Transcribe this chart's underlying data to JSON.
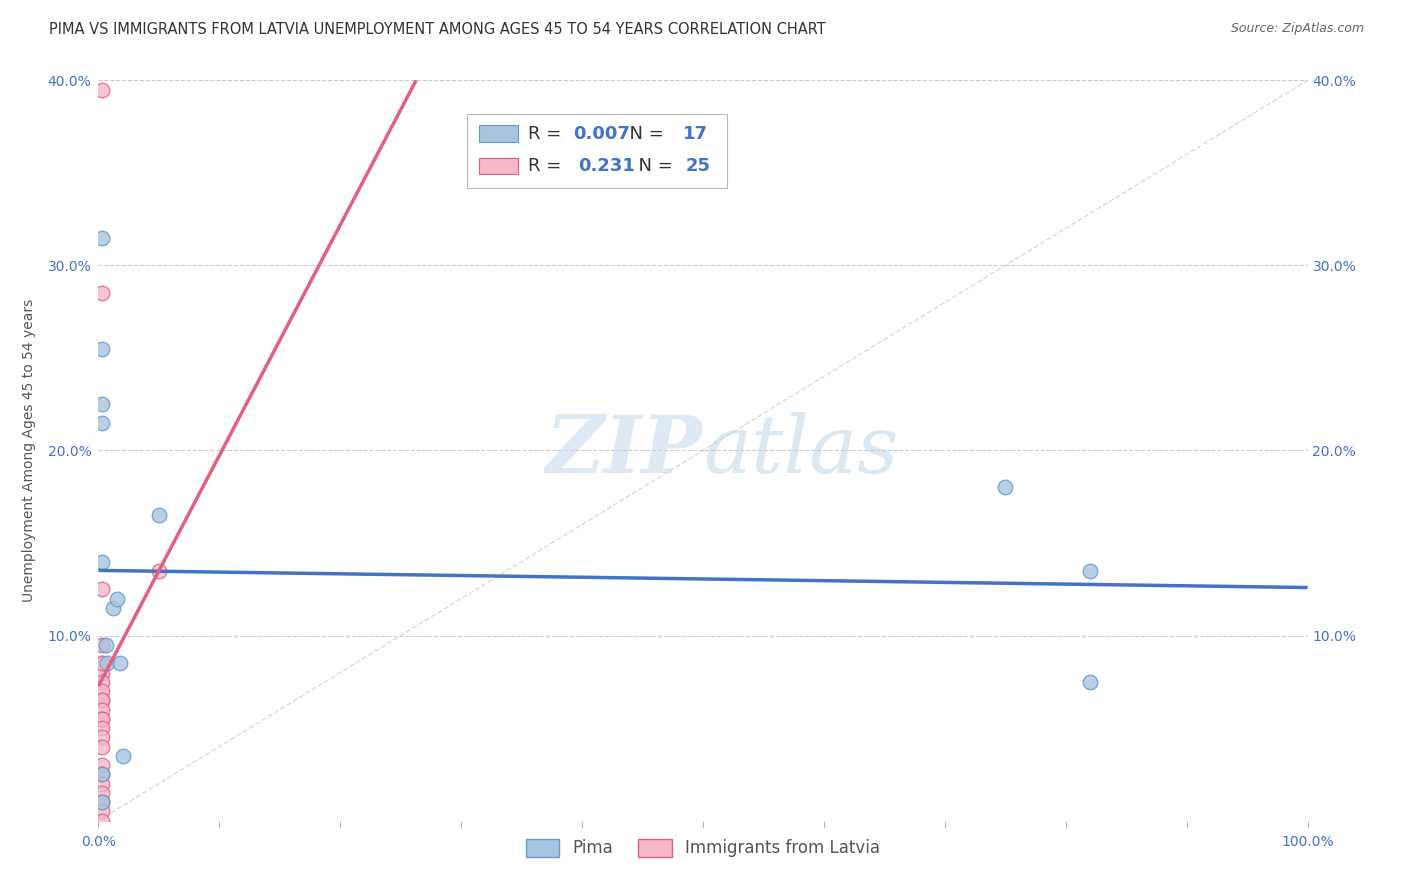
{
  "title": "PIMA VS IMMIGRANTS FROM LATVIA UNEMPLOYMENT AMONG AGES 45 TO 54 YEARS CORRELATION CHART",
  "source": "Source: ZipAtlas.com",
  "ylabel": "Unemployment Among Ages 45 to 54 years",
  "xlim": [
    0,
    1.0
  ],
  "ylim": [
    0,
    0.4
  ],
  "xticks": [
    0.0,
    0.1,
    0.2,
    0.3,
    0.4,
    0.5,
    0.6,
    0.7,
    0.8,
    0.9,
    1.0
  ],
  "xticklabels": [
    "0.0%",
    "",
    "",
    "",
    "",
    "",
    "",
    "",
    "",
    "",
    "100.0%"
  ],
  "yticks": [
    0.0,
    0.1,
    0.2,
    0.3,
    0.4
  ],
  "yticklabels": [
    "",
    "10.0%",
    "20.0%",
    "30.0%",
    "40.0%"
  ],
  "pima_x": [
    0.003,
    0.003,
    0.003,
    0.003,
    0.003,
    0.006,
    0.007,
    0.012,
    0.015,
    0.018,
    0.02,
    0.05,
    0.75,
    0.82,
    0.82,
    0.003,
    0.003
  ],
  "pima_y": [
    0.315,
    0.255,
    0.225,
    0.215,
    0.14,
    0.095,
    0.085,
    0.115,
    0.12,
    0.085,
    0.035,
    0.165,
    0.18,
    0.135,
    0.075,
    0.025,
    0.01
  ],
  "latvia_x": [
    0.003,
    0.003,
    0.003,
    0.003,
    0.003,
    0.003,
    0.003,
    0.003,
    0.003,
    0.003,
    0.003,
    0.003,
    0.003,
    0.003,
    0.003,
    0.003,
    0.003,
    0.003,
    0.003,
    0.003,
    0.003,
    0.003,
    0.003,
    0.003,
    0.05
  ],
  "latvia_y": [
    0.395,
    0.285,
    0.125,
    0.095,
    0.085,
    0.08,
    0.075,
    0.07,
    0.065,
    0.065,
    0.06,
    0.055,
    0.055,
    0.05,
    0.045,
    0.04,
    0.03,
    0.025,
    0.02,
    0.015,
    0.01,
    0.005,
    0.0,
    0.085,
    0.135
  ],
  "pima_color": "#a8c4e0",
  "latvia_color": "#f4b8c8",
  "pima_edge_color": "#6699cc",
  "latvia_edge_color": "#e06080",
  "regression_pima_color": "#4472c4",
  "regression_latvia_color": "#e06080",
  "legend_text_color": "#4472c4",
  "pima_R": "0.007",
  "pima_N": "17",
  "latvia_R": "0.231",
  "latvia_N": "25",
  "watermark_zip_color": "#cce0f0",
  "watermark_atlas_color": "#b8d4e8",
  "grid_color": "#cccccc",
  "axis_color": "#4472c4",
  "title_color": "#333333",
  "source_color": "#666666",
  "ylabel_color": "#555555",
  "title_fontsize": 10.5,
  "label_fontsize": 10,
  "tick_fontsize": 10,
  "scatter_size": 110,
  "dashed_line_color": "#cccccc"
}
